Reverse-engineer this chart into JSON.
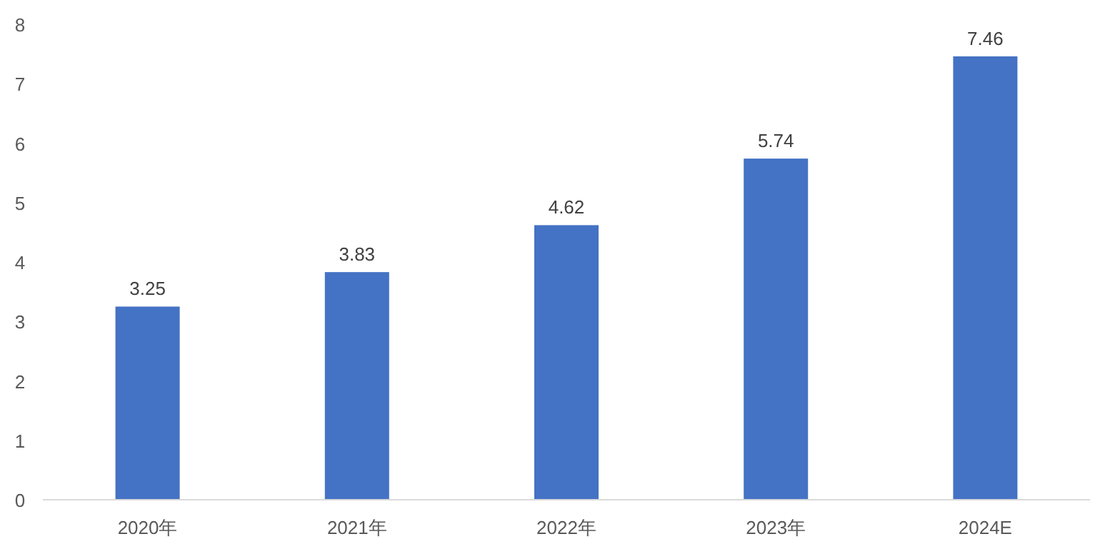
{
  "chart_data": {
    "type": "bar",
    "categories": [
      "2020年",
      "2021年",
      "2022年",
      "2023年",
      "2024E"
    ],
    "values": [
      3.25,
      3.83,
      4.62,
      5.74,
      7.46
    ],
    "color": "#4472c4",
    "ylim": [
      0,
      8
    ],
    "yticks": [
      0,
      1,
      2,
      3,
      4,
      5,
      6,
      7,
      8
    ],
    "data_labels": true
  }
}
